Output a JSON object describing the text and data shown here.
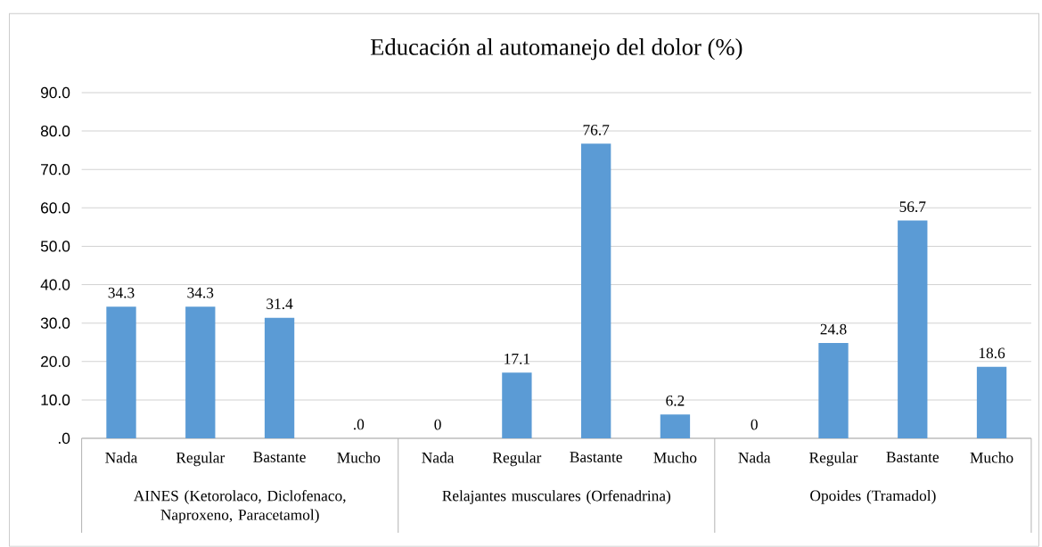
{
  "chart_data": {
    "type": "bar",
    "title": "Educación al automanejo del dolor (%)",
    "categories": [
      "Nada",
      "Regular",
      "Bastante",
      "Mucho",
      "Nada",
      "Regular",
      "Bastante",
      "Mucho",
      "Nada",
      "Regular",
      "Bastante",
      "Mucho"
    ],
    "values": [
      34.3,
      34.3,
      31.4,
      0,
      0,
      17.1,
      76.7,
      6.2,
      0,
      24.8,
      56.7,
      18.6
    ],
    "value_labels": [
      "34.3",
      "34.3",
      "31.4",
      ".0",
      "0",
      "17.1",
      "76.7",
      "6.2",
      "0",
      "24.8",
      "56.7",
      "18.6"
    ],
    "color": "#5b9bd5",
    "ylim": [
      0,
      90
    ],
    "yticks": [
      {
        "value": 0,
        "label": ".0"
      },
      {
        "value": 10,
        "label": "10.0"
      },
      {
        "value": 20,
        "label": "20.0"
      },
      {
        "value": 30,
        "label": "30.0"
      },
      {
        "value": 40,
        "label": "40.0"
      },
      {
        "value": 50,
        "label": "50.0"
      },
      {
        "value": 60,
        "label": "60.0"
      },
      {
        "value": 70,
        "label": "70.0"
      },
      {
        "value": 80,
        "label": "80.0"
      },
      {
        "value": 90,
        "label": "90.0"
      }
    ],
    "grid": "y",
    "annotations": [
      "AINES (Ketorolaco, Diclofenaco, Naproxeno, Paracetamol)",
      "Relajantes musculares (Orfenadrina)",
      "Opoides (Tramadol)"
    ]
  }
}
